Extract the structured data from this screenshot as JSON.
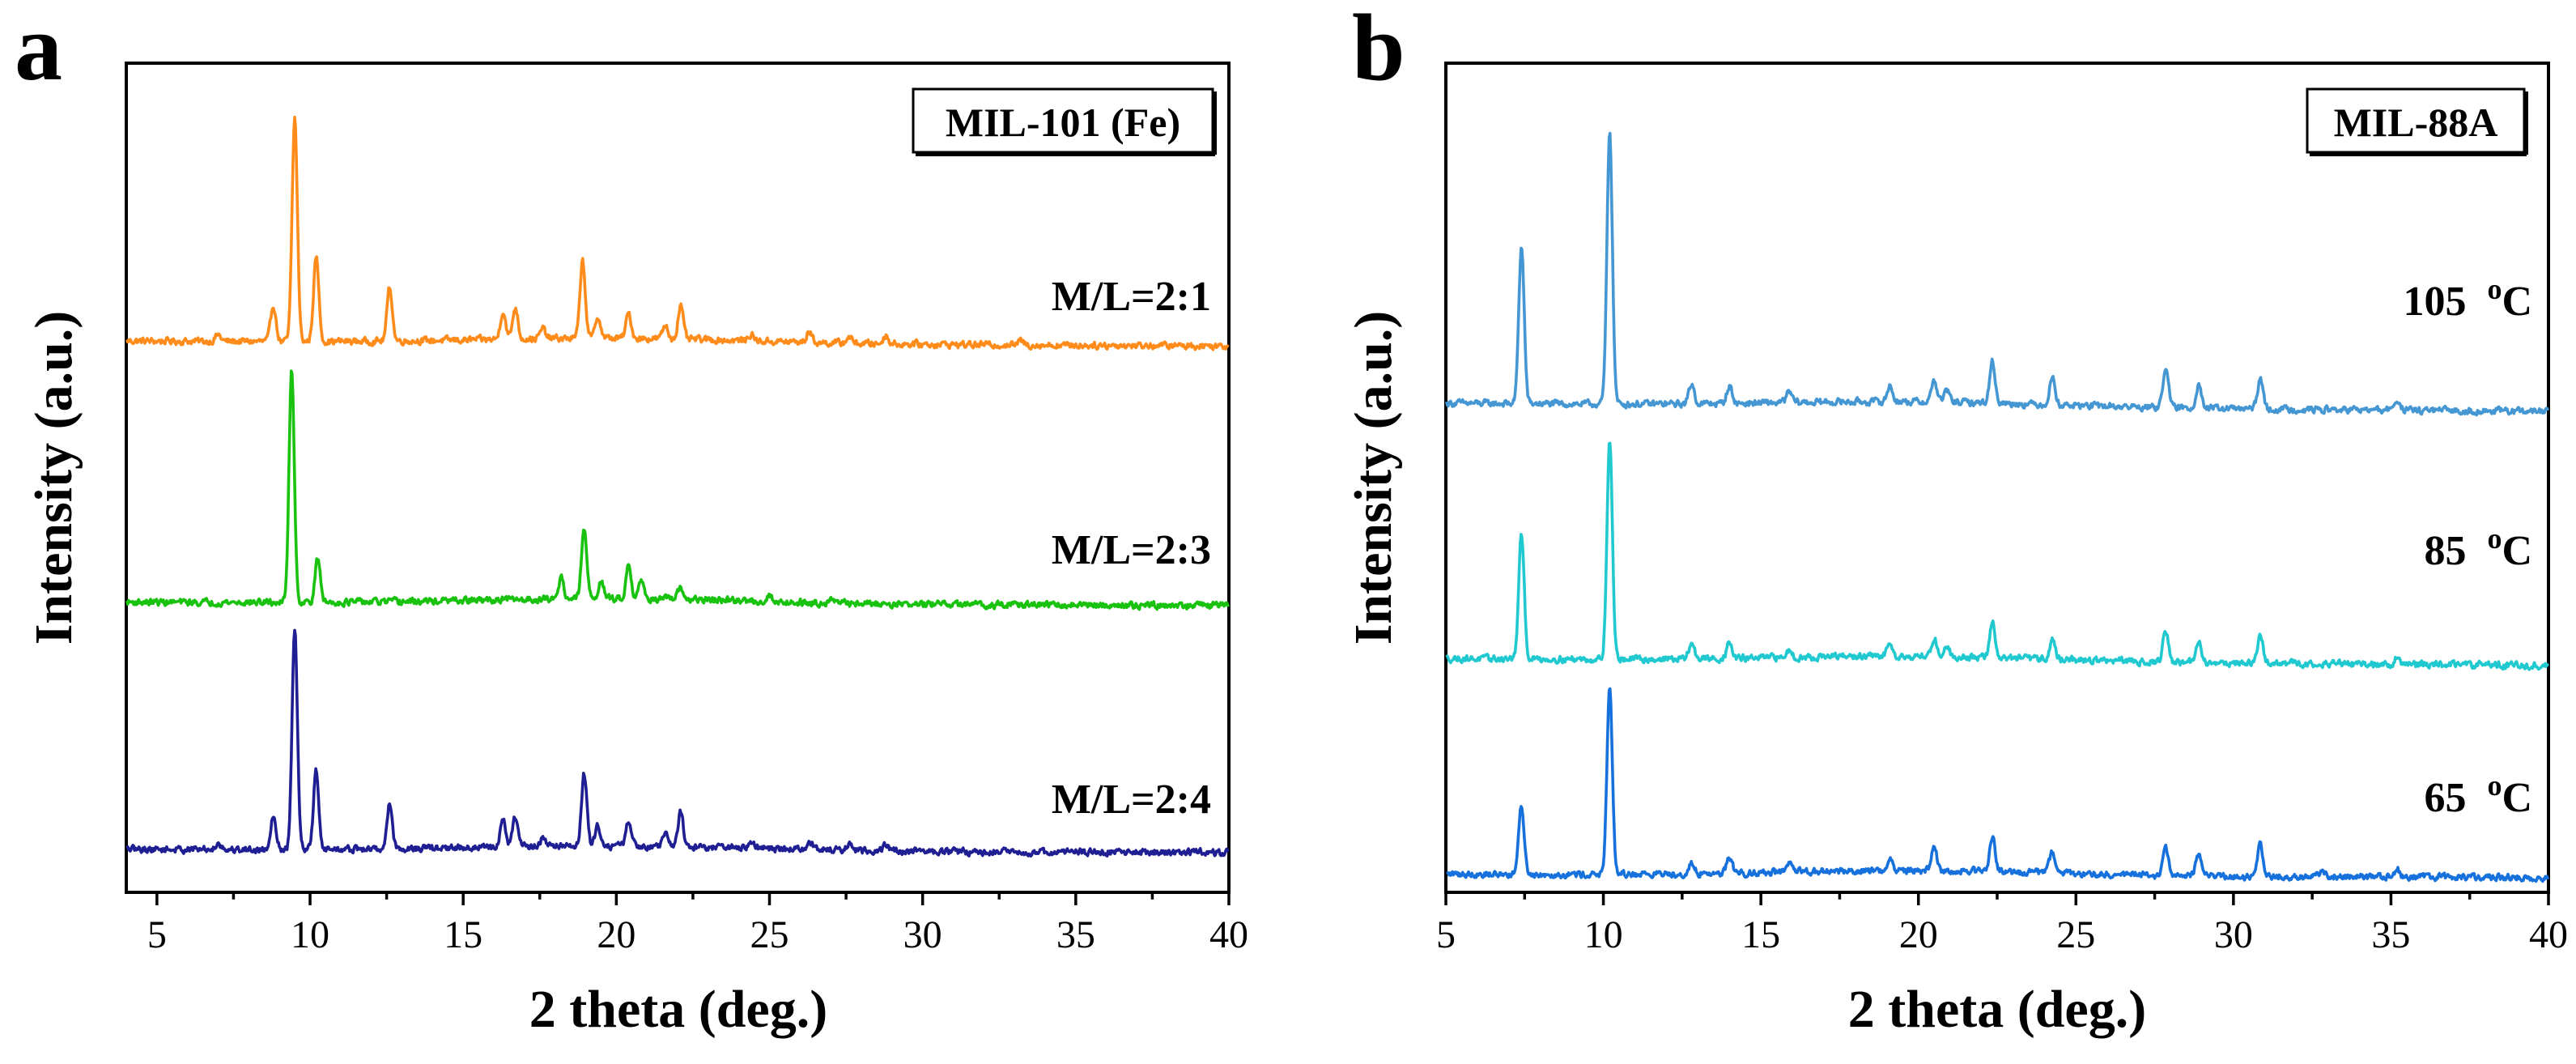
{
  "figure": {
    "colors": {
      "axes": "#000000",
      "background": "#ffffff"
    }
  },
  "chart_data": [
    {
      "type": "line",
      "panel_label": "a",
      "title_box": "MIL-101 (Fe)",
      "xlabel": "2 theta (deg.)",
      "ylabel": "Intensity (a.u.)",
      "xlim": [
        4,
        40
      ],
      "ylim": [
        0,
        100
      ],
      "xticks": [
        5,
        10,
        15,
        20,
        25,
        30,
        35,
        40
      ],
      "yticks_shown": false,
      "series": [
        {
          "name": "M/L=2:1",
          "color": "#ff8c1a",
          "baseline": 66.5,
          "end_drift": -0.6,
          "peaks": [
            [
              7.0,
              0.8
            ],
            [
              8.8,
              4.4
            ],
            [
              9.5,
              27.0
            ],
            [
              10.2,
              10.2
            ],
            [
              12.6,
              6.5
            ],
            [
              16.3,
              3.4
            ],
            [
              16.7,
              3.8
            ],
            [
              17.6,
              1.2
            ],
            [
              18.9,
              9.4
            ],
            [
              19.4,
              2.6
            ],
            [
              20.4,
              3.0
            ],
            [
              21.6,
              1.6
            ],
            [
              22.1,
              4.0
            ],
            [
              24.4,
              0.8
            ],
            [
              26.3,
              1.3
            ],
            [
              27.6,
              0.8
            ],
            [
              28.8,
              1.0
            ],
            [
              33.2,
              0.5
            ]
          ]
        },
        {
          "name": "M/L=2:3",
          "color": "#18c20e",
          "baseline": 35.0,
          "end_drift": -0.4,
          "peaks": [
            [
              9.4,
              28.2
            ],
            [
              10.25,
              5.2
            ],
            [
              18.2,
              2.6
            ],
            [
              18.95,
              8.4
            ],
            [
              19.5,
              2.2
            ],
            [
              20.4,
              4.1
            ],
            [
              20.8,
              2.3
            ],
            [
              22.1,
              1.4
            ],
            [
              25.0,
              0.7
            ],
            [
              27.0,
              0.5
            ]
          ]
        },
        {
          "name": "M/L=2:4",
          "color": "#1f1e93",
          "baseline": 5.2,
          "end_drift": -0.4,
          "peaks": [
            [
              7.0,
              0.8
            ],
            [
              8.8,
              4.3
            ],
            [
              9.5,
              26.6
            ],
            [
              10.2,
              9.5
            ],
            [
              12.6,
              5.5
            ],
            [
              16.3,
              3.2
            ],
            [
              16.7,
              3.6
            ],
            [
              17.6,
              1.1
            ],
            [
              18.95,
              8.6
            ],
            [
              19.4,
              2.4
            ],
            [
              20.4,
              3.0
            ],
            [
              21.6,
              1.6
            ],
            [
              22.1,
              4.2
            ],
            [
              24.4,
              0.7
            ],
            [
              26.3,
              1.0
            ],
            [
              27.6,
              0.7
            ],
            [
              28.8,
              0.9
            ]
          ]
        }
      ]
    },
    {
      "type": "line",
      "panel_label": "b",
      "title_box": "MIL-88A",
      "xlabel": "2 theta (deg.)",
      "ylabel": "Intensity (a.u.)",
      "xlim": [
        5,
        40
      ],
      "ylim": [
        0,
        100
      ],
      "xticks": [
        5,
        10,
        15,
        20,
        25,
        30,
        35,
        40
      ],
      "yticks_shown": false,
      "series": [
        {
          "name": "105  oC",
          "color": "#4497d2",
          "baseline": 59.0,
          "end_drift": -1.0,
          "peaks": [
            [
              7.4,
              19.0
            ],
            [
              10.2,
              33.0
            ],
            [
              12.8,
              2.4
            ],
            [
              14.0,
              2.1
            ],
            [
              15.9,
              1.3
            ],
            [
              19.1,
              1.9
            ],
            [
              20.5,
              2.6
            ],
            [
              20.9,
              1.4
            ],
            [
              22.35,
              5.0
            ],
            [
              24.25,
              3.3
            ],
            [
              27.85,
              5.1
            ],
            [
              28.9,
              3.0
            ],
            [
              30.85,
              3.7
            ],
            [
              35.2,
              1.3
            ]
          ]
        },
        {
          "name": "85  oC",
          "color": "#1fc9cf",
          "baseline": 28.2,
          "end_drift": -0.8,
          "peaks": [
            [
              7.4,
              15.0
            ],
            [
              10.2,
              26.5
            ],
            [
              12.8,
              1.9
            ],
            [
              14.0,
              1.8
            ],
            [
              15.9,
              0.9
            ],
            [
              19.1,
              1.8
            ],
            [
              20.5,
              2.2
            ],
            [
              20.9,
              1.2
            ],
            [
              22.35,
              4.2
            ],
            [
              24.25,
              2.4
            ],
            [
              27.85,
              3.8
            ],
            [
              28.9,
              2.4
            ],
            [
              30.85,
              3.4
            ],
            [
              35.2,
              0.8
            ]
          ]
        },
        {
          "name": "65  oC",
          "color": "#1671dc",
          "baseline": 2.2,
          "end_drift": -0.4,
          "peaks": [
            [
              7.4,
              8.3
            ],
            [
              10.2,
              22.2
            ],
            [
              12.8,
              1.1
            ],
            [
              14.0,
              2.1
            ],
            [
              15.9,
              0.9
            ],
            [
              19.1,
              1.4
            ],
            [
              20.5,
              2.7
            ],
            [
              22.35,
              4.4
            ],
            [
              24.25,
              2.6
            ],
            [
              27.85,
              3.2
            ],
            [
              28.9,
              2.6
            ],
            [
              30.85,
              3.8
            ],
            [
              32.8,
              0.6
            ],
            [
              35.2,
              0.9
            ]
          ]
        }
      ]
    }
  ]
}
